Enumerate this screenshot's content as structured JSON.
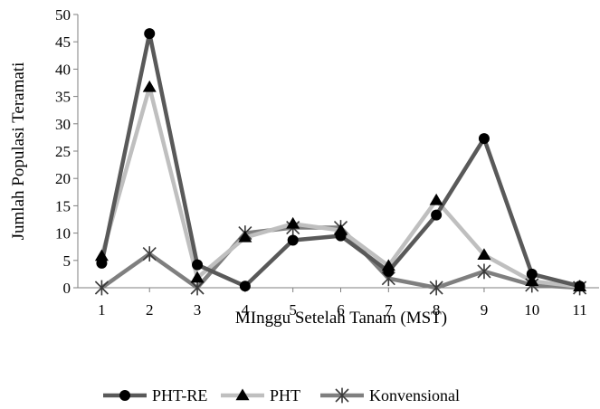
{
  "chart_data": {
    "type": "line",
    "title": "",
    "xlabel": "MInggu Setelah Tanam (MST)",
    "ylabel": "Jumlah Populasi Teramati",
    "categories": [
      "1",
      "2",
      "3",
      "4",
      "5",
      "6",
      "7",
      "8",
      "9",
      "10",
      "11"
    ],
    "ylim": [
      0,
      50
    ],
    "yticks": [
      "0",
      "5",
      "10",
      "15",
      "20",
      "25",
      "30",
      "35",
      "40",
      "45",
      "50"
    ],
    "grid": false,
    "legend_position": "bottom",
    "series": [
      {
        "name": "PHT-RE",
        "marker": "circle",
        "color": "#595959",
        "values": [
          4.5,
          46.5,
          4.2,
          0.3,
          8.7,
          9.5,
          3.0,
          13.3,
          27.3,
          2.5,
          0.3
        ]
      },
      {
        "name": "PHT",
        "marker": "triangle",
        "color": "#bfbfbf",
        "values": [
          5.8,
          36.7,
          1.8,
          9.2,
          11.7,
          10.5,
          4.0,
          16.0,
          6.0,
          1.2,
          0.2
        ]
      },
      {
        "name": "Konvensional",
        "marker": "star",
        "color": "#7f7f7f",
        "values": [
          0.0,
          6.2,
          0.0,
          10.0,
          11.0,
          11.0,
          1.7,
          0.0,
          3.0,
          0.5,
          0.0
        ]
      }
    ]
  }
}
